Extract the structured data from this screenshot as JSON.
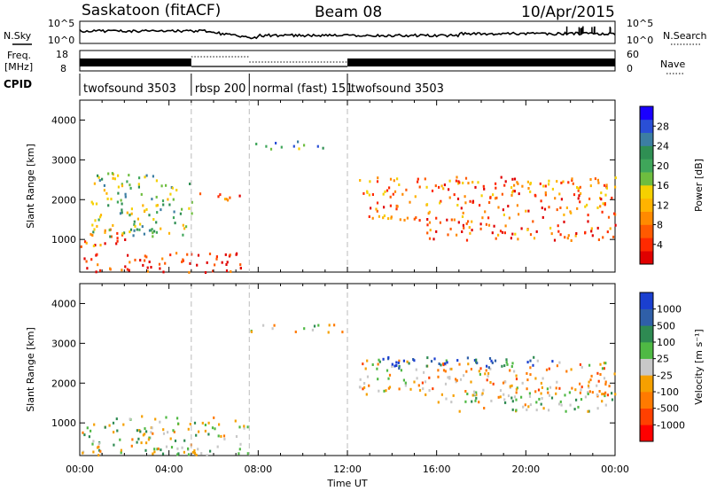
{
  "header": {
    "radar": "Saskatoon (fitACF)",
    "beam": "Beam 08",
    "date": "10/Apr/2015"
  },
  "status_panel": {
    "nsky_label": "N.Sky",
    "nsearch_label": "N.Search",
    "freq_label_line1": "Freq.",
    "freq_label_line2": "[MHz]",
    "nave_label": "Nave",
    "cpid_label": "CPID",
    "left_ticks_top": [
      "10^5",
      "10^0"
    ],
    "right_ticks_top": [
      "10^5",
      "10^0"
    ],
    "left_ticks_freq": [
      "18",
      "8"
    ],
    "right_ticks_nave": [
      "60",
      "0"
    ],
    "cpid_segments": [
      {
        "name": "twofsound",
        "id": "3503",
        "start_h": 0.0,
        "end_h": 5.0
      },
      {
        "name": "rbsp",
        "id": "200",
        "start_h": 5.0,
        "end_h": 7.6
      },
      {
        "name": "normal (fast)",
        "id": "151",
        "start_h": 7.6,
        "end_h": 12.0
      },
      {
        "name": "twofsound",
        "id": "3503",
        "start_h": 12.0,
        "end_h": 24.0
      }
    ]
  },
  "chart_data": [
    {
      "type": "heatmap",
      "panel": "power",
      "ylabel": "Slant Range [km]",
      "xlabel": "",
      "ylim": [
        180,
        4500
      ],
      "xlim": [
        0,
        24
      ],
      "yticks": [
        "1000",
        "2000",
        "3000",
        "4000"
      ],
      "xticks": [
        "00:00",
        "04:00",
        "08:00",
        "12:00",
        "16:00",
        "20:00",
        "00:00"
      ],
      "colorbar": {
        "label": "Power [dB]",
        "ticks": [
          "28",
          "24",
          "20",
          "16",
          "12",
          "8",
          "4"
        ],
        "range": [
          0,
          30
        ],
        "colors": [
          "#1a00ff",
          "#2a4fd6",
          "#3c7ea2",
          "#2f8f53",
          "#3fa65a",
          "#6ebd3f",
          "#f5d000",
          "#ffb300",
          "#ff8a00",
          "#ff5a00",
          "#ff2a00",
          "#e00000"
        ]
      },
      "echo_regions": [
        {
          "desc": "near-range strong",
          "t0": 0.0,
          "t1": 7.5,
          "r0": 200,
          "r1": 700,
          "value": 27
        },
        {
          "desc": "near-range patches",
          "t0": 0.0,
          "t1": 2.0,
          "r0": 800,
          "r1": 1400,
          "value": 23
        },
        {
          "desc": "scattered mid",
          "t0": 0.5,
          "t1": 5.0,
          "r0": 1100,
          "r1": 2700,
          "value": 13
        },
        {
          "desc": "rbsp band",
          "t0": 5.0,
          "t1": 7.3,
          "r0": 2000,
          "r1": 2200,
          "value": 22
        },
        {
          "desc": "upper band",
          "t0": 7.6,
          "t1": 11.0,
          "r0": 3300,
          "r1": 3500,
          "value": 10
        },
        {
          "desc": "main afternoon band",
          "t0": 12.5,
          "t1": 24.0,
          "r0": 1500,
          "r1": 2600,
          "value": 22
        },
        {
          "desc": "lower tail",
          "t0": 15.5,
          "t1": 24.0,
          "r0": 1000,
          "r1": 1500,
          "value": 24
        }
      ]
    },
    {
      "type": "heatmap",
      "panel": "velocity",
      "ylabel": "Slant Range [km]",
      "xlabel": "Time UT",
      "ylim": [
        180,
        4500
      ],
      "xlim": [
        0,
        24
      ],
      "yticks": [
        "1000",
        "2000",
        "3000",
        "4000"
      ],
      "xticks": [
        "00:00",
        "04:00",
        "08:00",
        "12:00",
        "16:00",
        "20:00",
        "00:00"
      ],
      "colorbar": {
        "label": "Velocity [m s⁻¹]",
        "ticks": [
          "1000",
          "500",
          "100",
          "25",
          "-25",
          "-100",
          "-500",
          "-1000"
        ],
        "colors": [
          "#1a3fd0",
          "#2f5fa8",
          "#2e8a52",
          "#4fb944",
          "#c8c8c8",
          "#f5a000",
          "#ff7a00",
          "#ff4000",
          "#ff0000"
        ]
      },
      "echo_regions": [
        {
          "desc": "near-range mixed",
          "t0": 0.0,
          "t1": 7.5,
          "r0": 200,
          "r1": 1200,
          "value": 25
        },
        {
          "desc": "ground scatter band",
          "t0": 7.6,
          "t1": 11.8,
          "r0": 3300,
          "r1": 3500,
          "value": 0
        },
        {
          "desc": "main afternoon band",
          "t0": 12.5,
          "t1": 24.0,
          "r0": 1700,
          "r1": 2600,
          "value": -200
        },
        {
          "desc": "upper blue",
          "t0": 13.0,
          "t1": 22.0,
          "r0": 2400,
          "r1": 2700,
          "value": 700
        },
        {
          "desc": "grey tail",
          "t0": 16.0,
          "t1": 24.0,
          "r0": 1300,
          "r1": 1800,
          "value": 0
        }
      ]
    }
  ]
}
